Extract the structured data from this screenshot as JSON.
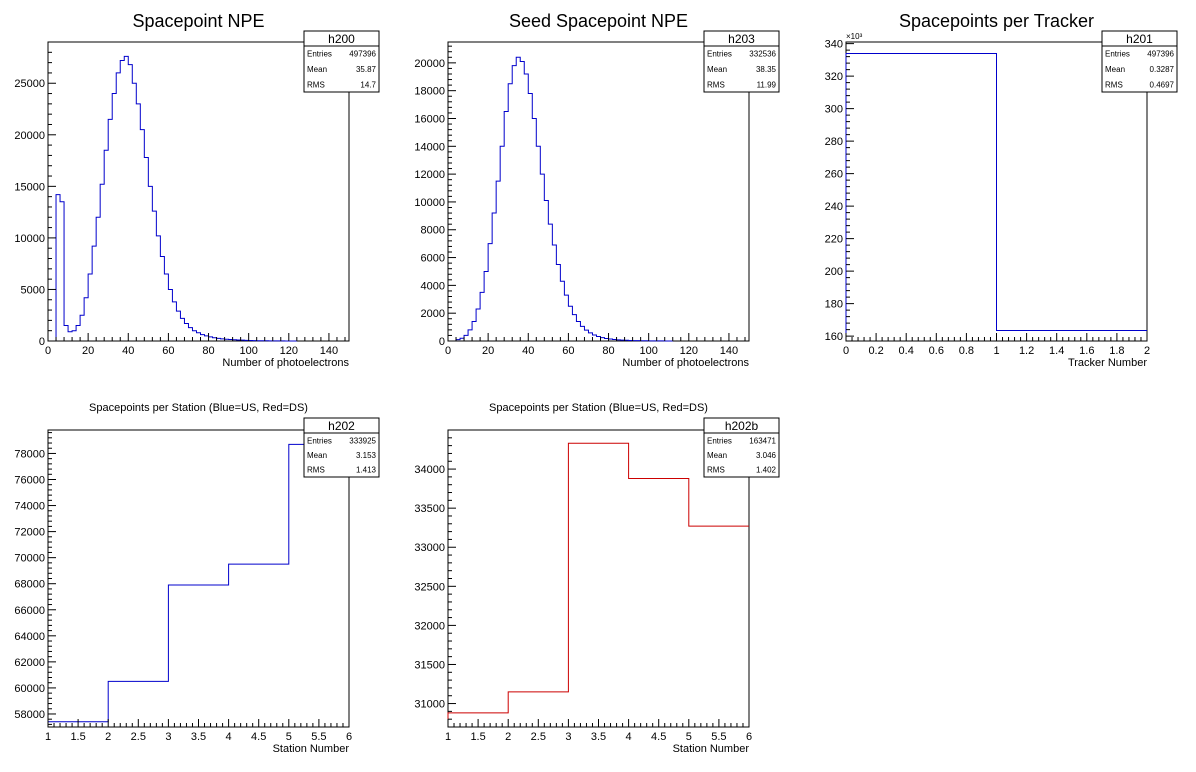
{
  "chart_data": [
    {
      "id": "h200",
      "type": "histogram",
      "title": "Spacepoint NPE",
      "xlabel": "Number of photoelectrons",
      "ylabel": "",
      "xlim": [
        0,
        150
      ],
      "ylim": [
        0,
        29000
      ],
      "xticks": [
        0,
        20,
        40,
        60,
        80,
        100,
        120,
        140
      ],
      "yticks": [
        0,
        5000,
        10000,
        15000,
        20000,
        25000
      ],
      "line_color": "#0000cc",
      "bin_width": 2,
      "bin_start": 4,
      "values": [
        14200,
        13500,
        1500,
        900,
        1000,
        1500,
        2500,
        4200,
        6500,
        9200,
        12000,
        15200,
        18500,
        21500,
        24000,
        26000,
        27200,
        27600,
        26800,
        25000,
        23000,
        20500,
        17800,
        15000,
        12600,
        10200,
        8200,
        6500,
        5000,
        3800,
        2900,
        2200,
        1700,
        1300,
        1000,
        800,
        620,
        500,
        400,
        320,
        260,
        210,
        170,
        140,
        120,
        100,
        80,
        65,
        50,
        40,
        30,
        25,
        20,
        15,
        12,
        10,
        8,
        6,
        5,
        4
      ],
      "stats": {
        "name": "h200",
        "rows": [
          [
            "Entries",
            "497396"
          ],
          [
            "Mean",
            "35.87"
          ],
          [
            "RMS",
            "14.7"
          ]
        ]
      }
    },
    {
      "id": "h203",
      "type": "histogram",
      "title": "Seed Spacepoint NPE",
      "xlabel": "Number of photoelectrons",
      "ylabel": "",
      "xlim": [
        0,
        150
      ],
      "ylim": [
        0,
        21500
      ],
      "xticks": [
        0,
        20,
        40,
        60,
        80,
        100,
        120,
        140
      ],
      "yticks": [
        0,
        2000,
        4000,
        6000,
        8000,
        10000,
        12000,
        14000,
        16000,
        18000,
        20000
      ],
      "line_color": "#0000cc",
      "bin_width": 2,
      "bin_start": 4,
      "values": [
        100,
        200,
        400,
        800,
        1400,
        2300,
        3500,
        5000,
        7000,
        9200,
        11500,
        14000,
        16500,
        18500,
        19800,
        20400,
        20100,
        19200,
        17800,
        16000,
        14000,
        12000,
        10100,
        8400,
        6900,
        5500,
        4300,
        3300,
        2500,
        1900,
        1400,
        1050,
        780,
        580,
        430,
        320,
        240,
        180,
        140,
        110,
        85,
        65,
        50,
        40,
        30,
        24,
        18,
        14,
        10,
        8,
        6,
        5,
        4,
        3
      ],
      "stats": {
        "name": "h203",
        "rows": [
          [
            "Entries",
            "332536"
          ],
          [
            "Mean",
            "38.35"
          ],
          [
            "RMS",
            "11.99"
          ]
        ]
      }
    },
    {
      "id": "h201",
      "type": "histogram",
      "title": "Spacepoints per Tracker",
      "xlabel": "Tracker Number",
      "ylabel": "",
      "multiplier": "×10³",
      "xlim": [
        0,
        2
      ],
      "ylim": [
        157,
        341
      ],
      "xticks": [
        0,
        0.2,
        0.4,
        0.6,
        0.8,
        1,
        1.2,
        1.4,
        1.6,
        1.8,
        2
      ],
      "yticks": [
        160,
        180,
        200,
        220,
        240,
        260,
        280,
        300,
        320,
        340
      ],
      "line_color": "#0000cc",
      "bin_edges": [
        0,
        1,
        2
      ],
      "values": [
        333.9,
        163.5
      ],
      "stats": {
        "name": "h201",
        "rows": [
          [
            "Entries",
            "497396"
          ],
          [
            "Mean",
            "0.3287"
          ],
          [
            "RMS",
            "0.4697"
          ]
        ]
      }
    },
    {
      "id": "h202",
      "type": "histogram",
      "title": "Spacepoints per Station (Blue=US, Red=DS)",
      "xlabel": "Station Number",
      "ylabel": "",
      "xlim": [
        1,
        6
      ],
      "ylim": [
        57000,
        79800
      ],
      "xticks": [
        1,
        1.5,
        2,
        2.5,
        3,
        3.5,
        4,
        4.5,
        5,
        5.5,
        6
      ],
      "yticks": [
        58000,
        60000,
        62000,
        64000,
        66000,
        68000,
        70000,
        72000,
        74000,
        76000,
        78000
      ],
      "line_color": "#0000cc",
      "bin_edges": [
        1,
        2,
        3,
        4,
        5,
        6
      ],
      "values": [
        57400,
        60500,
        67900,
        69500,
        78700
      ],
      "stats": {
        "name": "h202",
        "rows": [
          [
            "Entries",
            "333925"
          ],
          [
            "Mean",
            "3.153"
          ],
          [
            "RMS",
            "1.413"
          ]
        ]
      }
    },
    {
      "id": "h202b",
      "type": "histogram",
      "title": "Spacepoints per Station (Blue=US, Red=DS)",
      "xlabel": "Station Number",
      "ylabel": "",
      "xlim": [
        1,
        6
      ],
      "ylim": [
        30700,
        34500
      ],
      "xticks": [
        1,
        1.5,
        2,
        2.5,
        3,
        3.5,
        4,
        4.5,
        5,
        5.5,
        6
      ],
      "yticks": [
        31000,
        31500,
        32000,
        32500,
        33000,
        33500,
        34000
      ],
      "line_color": "#cc0000",
      "bin_edges": [
        1,
        2,
        3,
        4,
        5,
        6
      ],
      "values": [
        30880,
        31150,
        34330,
        33880,
        33270
      ],
      "stats": {
        "name": "h202b",
        "rows": [
          [
            "Entries",
            "163471"
          ],
          [
            "Mean",
            "3.046"
          ],
          [
            "RMS",
            "1.402"
          ]
        ]
      }
    }
  ]
}
